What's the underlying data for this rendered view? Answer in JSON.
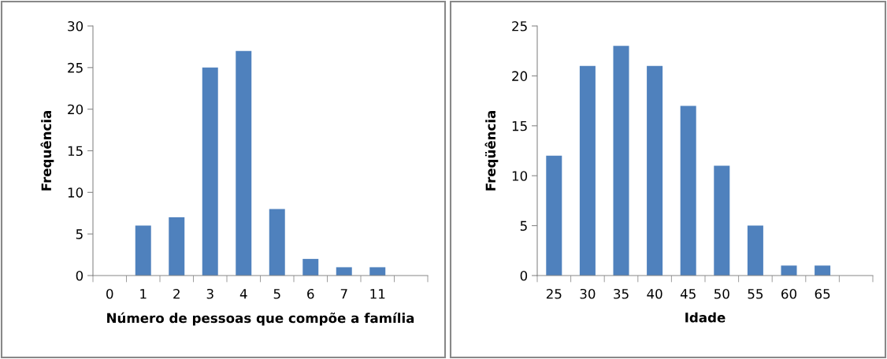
{
  "chart_data": [
    {
      "type": "bar",
      "xlabel": "Número de pessoas que compõe a família",
      "ylabel": "Frequência",
      "categories": [
        "0",
        "1",
        "2",
        "3",
        "4",
        "5",
        "6",
        "7",
        "11",
        null
      ],
      "values": [
        0,
        6,
        7,
        25,
        27,
        8,
        2,
        1,
        1,
        null
      ],
      "color": "#4f81bd",
      "ylim": [
        0,
        30
      ],
      "yticks": [
        0,
        5,
        10,
        15,
        20,
        25,
        30
      ],
      "grid": false,
      "legend": false
    },
    {
      "type": "bar",
      "xlabel": "Idade",
      "ylabel": "Freqüência",
      "categories": [
        "25",
        "30",
        "35",
        "40",
        "45",
        "50",
        "55",
        "60",
        "65",
        null
      ],
      "values": [
        12,
        21,
        23,
        21,
        17,
        11,
        5,
        1,
        1,
        null
      ],
      "color": "#4f81bd",
      "ylim": [
        0,
        25
      ],
      "yticks": [
        0,
        5,
        10,
        15,
        20,
        25
      ],
      "grid": false,
      "legend": false
    }
  ]
}
